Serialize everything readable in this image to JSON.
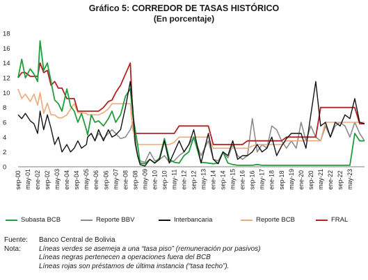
{
  "title": "Gráfico 5: CORREDOR DE TASAS HISTÓRICO",
  "subtitle": "(En porcentaje)",
  "colors": {
    "subasta": "#1f9d3a",
    "reporte_bbv": "#8c8c8c",
    "interbancaria": "#111111",
    "reporte_bcb": "#f0a878",
    "fral": "#b22024",
    "shade": "#e3e3e3"
  },
  "chart_data": {
    "type": "line",
    "ylim": [
      0,
      18
    ],
    "yticks": [
      "0",
      "2",
      "4",
      "6",
      "8",
      "10",
      "12",
      "14",
      "16",
      "18"
    ],
    "xlim": [
      0,
      284
    ],
    "xtick_labels": [
      "sep-00",
      "may-01",
      "ene-02",
      "sep-02",
      "may-03",
      "ene-04",
      "sep-04",
      "may-05",
      "ene-06",
      "sep-06",
      "may-07",
      "ene-08",
      "sep-08",
      "may-09",
      "ene-10",
      "sep-10",
      "may-11",
      "ene-12",
      "sep-12",
      "may-13",
      "ene-14",
      "sep-14",
      "may-15",
      "ene-16",
      "sep-16",
      "may-17",
      "ene-18",
      "sep-18",
      "may-19",
      "ene-20",
      "sep-20",
      "may-21",
      "ene-22",
      "sep-22",
      "may-23"
    ],
    "shaded_periods": [
      [
        "sep-00",
        "jun-05"
      ],
      [
        "dic-15",
        "sep-23"
      ]
    ],
    "x_months": [
      0,
      3,
      6,
      10,
      13,
      16,
      18,
      21,
      24,
      27,
      30,
      33,
      36,
      40,
      43,
      46,
      49,
      52,
      56,
      57,
      60,
      63,
      66,
      70,
      74,
      77,
      80,
      84,
      88,
      92,
      94,
      96,
      98,
      100,
      104,
      108,
      112,
      116,
      120,
      124,
      128,
      132,
      136,
      140,
      144,
      150,
      156,
      160,
      164,
      168,
      172,
      176,
      180,
      184,
      188,
      192,
      196,
      200,
      204,
      208,
      212,
      216,
      220,
      224,
      228,
      232,
      236,
      240,
      244,
      248,
      252,
      256,
      260,
      264,
      268,
      272,
      276,
      280,
      284
    ],
    "series": [
      {
        "key": "subasta",
        "name": "Subasta BCB",
        "values": [
          12,
          14.5,
          12,
          13.2,
          12.5,
          11.5,
          17,
          13,
          14,
          11.5,
          9,
          8.5,
          7.5,
          10.5,
          8.2,
          7.5,
          6,
          7.2,
          5,
          4.3,
          7,
          6,
          6.2,
          5.5,
          6.5,
          7.5,
          6,
          7,
          9.5,
          10.5,
          7,
          5,
          3,
          0.5,
          0.4,
          1,
          0.5,
          1.2,
          3.8,
          1,
          0.6,
          0.5,
          1.5,
          2,
          4,
          0.6,
          0.5,
          0.4,
          0.5,
          2,
          0.5,
          0.3,
          0.2,
          0.2,
          0.2,
          0.2,
          0.3,
          0.2,
          0.2,
          0.2,
          0.2,
          0.2,
          0.2,
          0.2,
          0.2,
          0.2,
          0.2,
          0.2,
          0.2,
          0.2,
          0.2,
          0.2,
          0.2,
          0.2,
          0.2,
          0.2,
          4.5,
          3.5,
          3.5
        ]
      },
      {
        "key": "reporte_bbv",
        "name": "Reporte BBV",
        "values": [
          null,
          null,
          null,
          null,
          null,
          null,
          null,
          null,
          null,
          null,
          null,
          null,
          null,
          null,
          null,
          null,
          null,
          null,
          null,
          4,
          4.5,
          3.5,
          4.5,
          3.8,
          4.5,
          5,
          4.5,
          3.8,
          4,
          5,
          6,
          3,
          1.5,
          0.8,
          0.6,
          2,
          0.8,
          1,
          1.5,
          0.6,
          0.8,
          1.5,
          2,
          3,
          4,
          1.5,
          3.5,
          1,
          0.8,
          2,
          1.2,
          3,
          1.5,
          1,
          1.5,
          6.5,
          2,
          3,
          2.5,
          5.5,
          5,
          3.5,
          2.5,
          3.5,
          2.5,
          6,
          3.5,
          5.5,
          4,
          3.5,
          5.5,
          4,
          5.5,
          6,
          5.5,
          4,
          6,
          4.5,
          3.5
        ]
      },
      {
        "key": "interbancaria",
        "name": "Interbancaria",
        "values": [
          7,
          6.5,
          7.2,
          6.2,
          5.8,
          4.5,
          7.5,
          5,
          7,
          5.2,
          3,
          4,
          2,
          3,
          2,
          2.5,
          3.5,
          2.5,
          3,
          4,
          4.5,
          3.5,
          5,
          3.5,
          5,
          4,
          4.3,
          5,
          8,
          11.5,
          8,
          3.5,
          1.5,
          0.3,
          0.1,
          1,
          0.5,
          1,
          3.5,
          0.5,
          2,
          3.5,
          2,
          3,
          5,
          0.5,
          4.5,
          1,
          0.4,
          2,
          1.5,
          3.5,
          1,
          1.5,
          1.5,
          2,
          3,
          2,
          2.5,
          4,
          1.5,
          2.8,
          3.8,
          4.5,
          4.5,
          4.5,
          2.5,
          7,
          11.5,
          5.5,
          6,
          4,
          6,
          5.5,
          7,
          6.5,
          9.2,
          6,
          5.8
        ]
      },
      {
        "key": "reporte_bcb",
        "name": "Reporte BCB",
        "values": [
          10.5,
          9.2,
          9.8,
          8.8,
          9.8,
          8.3,
          10,
          7.2,
          8.6,
          7,
          7,
          6.6,
          6.6,
          7,
          7.8,
          8.5,
          7.3,
          7.3,
          7.2,
          7,
          7,
          7,
          7,
          7.3,
          7.8,
          8.5,
          8.5,
          8.5,
          8.5,
          8.5,
          5,
          4,
          3,
          3,
          3,
          3,
          3,
          3,
          3,
          3,
          3.3,
          4,
          4,
          4,
          4,
          4,
          4,
          2.5,
          2.5,
          2.5,
          2.5,
          2.5,
          2.5,
          2.5,
          2.5,
          2.8,
          3,
          3,
          3,
          3,
          3,
          3,
          3.5,
          3.5,
          3.5,
          3.5,
          3.5,
          3.5,
          3.5,
          3.5,
          6,
          6,
          6,
          6,
          6,
          6,
          6,
          6,
          6
        ]
      },
      {
        "key": "fral",
        "name": "FRAL",
        "values": [
          12,
          12.7,
          12.7,
          12.2,
          12.2,
          12.2,
          14,
          12.7,
          13,
          11,
          11.5,
          10.6,
          10.6,
          9.2,
          9.2,
          9.2,
          7.5,
          7.5,
          7.5,
          7.5,
          7.5,
          7.5,
          7.5,
          8,
          8.8,
          9,
          10,
          11,
          12.5,
          14,
          7,
          4.5,
          4.5,
          4.5,
          4.5,
          4.5,
          4.5,
          4.5,
          4.5,
          4.5,
          4.5,
          5.5,
          5.5,
          5.5,
          5.5,
          5.5,
          5.5,
          3,
          3,
          3,
          3,
          3,
          3,
          3,
          3.5,
          3.5,
          3.5,
          3.5,
          3.5,
          3.5,
          3.5,
          3.5,
          4,
          4,
          4,
          4,
          4,
          4,
          4,
          8,
          8,
          8,
          8,
          8,
          8,
          8,
          8,
          5.8,
          5.8
        ]
      }
    ]
  },
  "legend": [
    {
      "key": "subasta",
      "label": "Subasta BCB"
    },
    {
      "key": "reporte_bbv",
      "label": "Reporte BBV"
    },
    {
      "key": "interbancaria",
      "label": "Interbancaria"
    },
    {
      "key": "reporte_bcb",
      "label": "Reporte BCB"
    },
    {
      "key": "fral",
      "label": "FRAL"
    }
  ],
  "notes": {
    "fuente_label": "Fuente:",
    "fuente_text": "Banco Central de Bolivia",
    "nota_label": "Nota:",
    "nota_lines": [
      "Líneas verdes se asemeja a una “tasa piso” (remuneración por pasivos)",
      "Líneas negras pertenecen a operaciones fuera del BCB",
      "Líneas rojas son préstamos de última instancia (“tasa techo”)."
    ]
  }
}
